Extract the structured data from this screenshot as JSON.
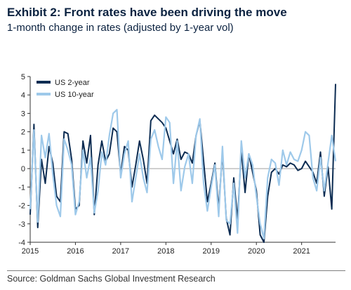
{
  "header": {
    "title": "Exhibit 2: Front rates have been driving the move",
    "subtitle": "1-month change in rates (adjusted by 1-year vol)"
  },
  "footer": {
    "source": "Source: Goldman Sachs Global Investment Research"
  },
  "colors": {
    "us2y": "#0c2c52",
    "us10y": "#9ec9ea",
    "zero_line": "#a0a0a0",
    "axis": "#333333",
    "title": "#0b2240"
  },
  "chart_data": {
    "type": "line",
    "title": "",
    "xlabel": "",
    "ylabel": "",
    "x_ticks": [
      "2015",
      "2016",
      "2017",
      "2018",
      "2019",
      "2020",
      "2021"
    ],
    "y_ticks": [
      -4,
      -3,
      -2,
      -1,
      0,
      1,
      2,
      3,
      4,
      5
    ],
    "xlim": [
      "2015-01",
      "2021-10"
    ],
    "ylim": [
      -4,
      5
    ],
    "legend": "top-left",
    "x": [
      "2015-01",
      "2015-02",
      "2015-03",
      "2015-04",
      "2015-05",
      "2015-06",
      "2015-07",
      "2015-08",
      "2015-09",
      "2015-10",
      "2015-11",
      "2015-12",
      "2016-01",
      "2016-02",
      "2016-03",
      "2016-04",
      "2016-05",
      "2016-06",
      "2016-07",
      "2016-08",
      "2016-09",
      "2016-10",
      "2016-11",
      "2016-12",
      "2017-01",
      "2017-02",
      "2017-03",
      "2017-04",
      "2017-05",
      "2017-06",
      "2017-07",
      "2017-08",
      "2017-09",
      "2017-10",
      "2017-11",
      "2017-12",
      "2018-01",
      "2018-02",
      "2018-03",
      "2018-04",
      "2018-05",
      "2018-06",
      "2018-07",
      "2018-08",
      "2018-09",
      "2018-10",
      "2018-11",
      "2018-12",
      "2019-01",
      "2019-02",
      "2019-03",
      "2019-04",
      "2019-05",
      "2019-06",
      "2019-07",
      "2019-08",
      "2019-09",
      "2019-10",
      "2019-11",
      "2019-12",
      "2020-01",
      "2020-02",
      "2020-03",
      "2020-04",
      "2020-05",
      "2020-06",
      "2020-07",
      "2020-08",
      "2020-09",
      "2020-10",
      "2020-11",
      "2020-12",
      "2021-01",
      "2021-02",
      "2021-03",
      "2021-04",
      "2021-05",
      "2021-06",
      "2021-07",
      "2021-08",
      "2021-09",
      "2021-10"
    ],
    "series": [
      {
        "name": "US 2-year",
        "values": [
          -2.5,
          2.4,
          -3.2,
          0.5,
          -0.8,
          1.2,
          0.3,
          -1.5,
          -1.8,
          2.0,
          1.9,
          0.5,
          -2.2,
          -2.0,
          1.5,
          0.3,
          1.8,
          -2.5,
          0.2,
          1.5,
          0.4,
          0.8,
          2.2,
          2.0,
          -0.3,
          1.2,
          1.0,
          -1.0,
          0.2,
          1.5,
          0.5,
          -0.8,
          2.6,
          2.9,
          2.7,
          2.5,
          2.2,
          1.5,
          0.8,
          1.6,
          0.5,
          0.9,
          0.8,
          0.3,
          1.8,
          2.6,
          0.4,
          -1.8,
          -0.8,
          0.3,
          -2.2,
          0.9,
          -2.7,
          -3.6,
          -0.5,
          -2.8,
          1.0,
          -1.3,
          0.8,
          -0.2,
          -1.2,
          -3.6,
          -4.0,
          -1.5,
          -0.2,
          0.0,
          -0.3,
          0.2,
          0.1,
          0.3,
          0.2,
          -0.1,
          0.0,
          0.4,
          0.1,
          -0.2,
          -0.8,
          0.9,
          -1.5,
          0.1,
          -2.2,
          4.6
        ]
      },
      {
        "name": "US 10-year",
        "values": [
          -2.2,
          2.1,
          -2.9,
          1.8,
          0.6,
          1.9,
          -0.3,
          -2.0,
          -2.6,
          1.6,
          1.0,
          0.2,
          -2.5,
          -1.8,
          1.0,
          -0.5,
          0.6,
          -2.4,
          -1.2,
          0.9,
          0.2,
          1.8,
          3.0,
          3.2,
          -0.5,
          0.8,
          1.5,
          -1.8,
          -0.5,
          0.8,
          -0.5,
          -1.3,
          1.6,
          2.1,
          1.2,
          0.5,
          2.8,
          2.5,
          -0.8,
          1.5,
          -1.2,
          0.1,
          0.8,
          -0.8,
          1.8,
          2.7,
          -0.8,
          -2.3,
          -1.0,
          0.2,
          -2.6,
          1.2,
          -2.8,
          -3.0,
          -0.8,
          -3.5,
          1.5,
          -0.5,
          0.8,
          0.2,
          -1.5,
          -3.0,
          -3.8,
          -0.5,
          0.5,
          0.3,
          -0.9,
          1.0,
          0.2,
          0.9,
          0.5,
          0.4,
          1.0,
          2.0,
          1.8,
          -0.5,
          -1.2,
          0.6,
          -1.2,
          0.3,
          1.8,
          0.4
        ]
      }
    ]
  }
}
